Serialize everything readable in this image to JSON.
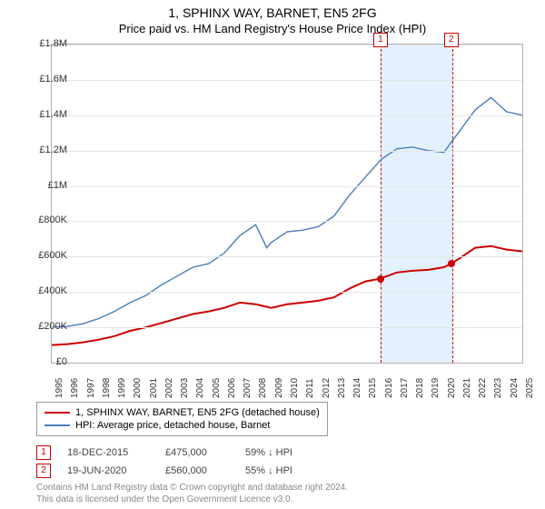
{
  "title": "1, SPHINX WAY, BARNET, EN5 2FG",
  "subtitle": "Price paid vs. HM Land Registry's House Price Index (HPI)",
  "chart": {
    "type": "line",
    "background_color": "#ffffff",
    "grid_color": "#e6e6e6",
    "border_color": "#b0b0b0",
    "y": {
      "min": 0,
      "max": 1800000,
      "step": 200000,
      "prefix": "£",
      "suffix_millions": "M",
      "suffix_thousands": "K",
      "ticks": [
        "£0",
        "£200K",
        "£400K",
        "£600K",
        "£800K",
        "£1M",
        "£1.2M",
        "£1.4M",
        "£1.6M",
        "£1.8M"
      ]
    },
    "x": {
      "min": 1995,
      "max": 2025,
      "step": 1,
      "labels": [
        "1995",
        "1996",
        "1997",
        "1998",
        "1999",
        "2000",
        "2001",
        "2002",
        "2003",
        "2004",
        "2005",
        "2006",
        "2007",
        "2008",
        "2009",
        "2010",
        "2011",
        "2012",
        "2013",
        "2014",
        "2015",
        "2016",
        "2017",
        "2018",
        "2019",
        "2020",
        "2021",
        "2022",
        "2023",
        "2024",
        "2025"
      ]
    },
    "shaded": {
      "start": 2015.96,
      "end": 2020.47,
      "fill": "rgba(173,216,250,0.35)",
      "border": "#c00"
    },
    "series": [
      {
        "name": "price_paid",
        "label": "1, SPHINX WAY, BARNET, EN5 2FG (detached house)",
        "color": "#cc0000",
        "width": 2,
        "points": [
          [
            1995,
            100000
          ],
          [
            1996,
            105000
          ],
          [
            1997,
            115000
          ],
          [
            1998,
            130000
          ],
          [
            1999,
            150000
          ],
          [
            2000,
            180000
          ],
          [
            2001,
            200000
          ],
          [
            2002,
            225000
          ],
          [
            2003,
            250000
          ],
          [
            2004,
            275000
          ],
          [
            2005,
            290000
          ],
          [
            2006,
            310000
          ],
          [
            2007,
            340000
          ],
          [
            2008,
            330000
          ],
          [
            2009,
            310000
          ],
          [
            2010,
            330000
          ],
          [
            2011,
            340000
          ],
          [
            2012,
            350000
          ],
          [
            2013,
            370000
          ],
          [
            2014,
            420000
          ],
          [
            2015,
            460000
          ],
          [
            2015.96,
            475000
          ],
          [
            2016,
            478000
          ],
          [
            2017,
            510000
          ],
          [
            2018,
            520000
          ],
          [
            2019,
            525000
          ],
          [
            2020,
            540000
          ],
          [
            2020.47,
            560000
          ],
          [
            2021,
            590000
          ],
          [
            2022,
            650000
          ],
          [
            2023,
            660000
          ],
          [
            2024,
            640000
          ],
          [
            2025,
            630000
          ]
        ]
      },
      {
        "name": "hpi",
        "label": "HPI: Average price, detached house, Barnet",
        "color": "#4a7ebb",
        "width": 1.4,
        "points": [
          [
            1995,
            200000
          ],
          [
            1996,
            205000
          ],
          [
            1997,
            220000
          ],
          [
            1998,
            250000
          ],
          [
            1999,
            290000
          ],
          [
            2000,
            340000
          ],
          [
            2001,
            380000
          ],
          [
            2002,
            440000
          ],
          [
            2003,
            490000
          ],
          [
            2004,
            540000
          ],
          [
            2005,
            560000
          ],
          [
            2006,
            620000
          ],
          [
            2007,
            720000
          ],
          [
            2008,
            780000
          ],
          [
            2008.7,
            650000
          ],
          [
            2009,
            680000
          ],
          [
            2010,
            740000
          ],
          [
            2011,
            750000
          ],
          [
            2012,
            770000
          ],
          [
            2013,
            830000
          ],
          [
            2014,
            950000
          ],
          [
            2015,
            1050000
          ],
          [
            2016,
            1150000
          ],
          [
            2017,
            1210000
          ],
          [
            2018,
            1220000
          ],
          [
            2019,
            1200000
          ],
          [
            2020,
            1190000
          ],
          [
            2021,
            1310000
          ],
          [
            2022,
            1430000
          ],
          [
            2023,
            1500000
          ],
          [
            2024,
            1420000
          ],
          [
            2025,
            1400000
          ]
        ]
      }
    ],
    "markers": [
      {
        "id": "1",
        "x": 2015.96,
        "y": 475000
      },
      {
        "id": "2",
        "x": 2020.47,
        "y": 560000
      }
    ]
  },
  "legend": {
    "items": [
      {
        "color": "#cc0000",
        "label": "1, SPHINX WAY, BARNET, EN5 2FG (detached house)"
      },
      {
        "color": "#4a7ebb",
        "label": "HPI: Average price, detached house, Barnet"
      }
    ]
  },
  "sales": [
    {
      "id": "1",
      "date": "18-DEC-2015",
      "price": "£475,000",
      "pct": "59%",
      "arrow": "↓",
      "suffix": "HPI"
    },
    {
      "id": "2",
      "date": "19-JUN-2020",
      "price": "£560,000",
      "pct": "55%",
      "arrow": "↓",
      "suffix": "HPI"
    }
  ],
  "footer": {
    "line1": "Contains HM Land Registry data © Crown copyright and database right 2024.",
    "line2": "This data is licensed under the Open Government Licence v3.0."
  }
}
